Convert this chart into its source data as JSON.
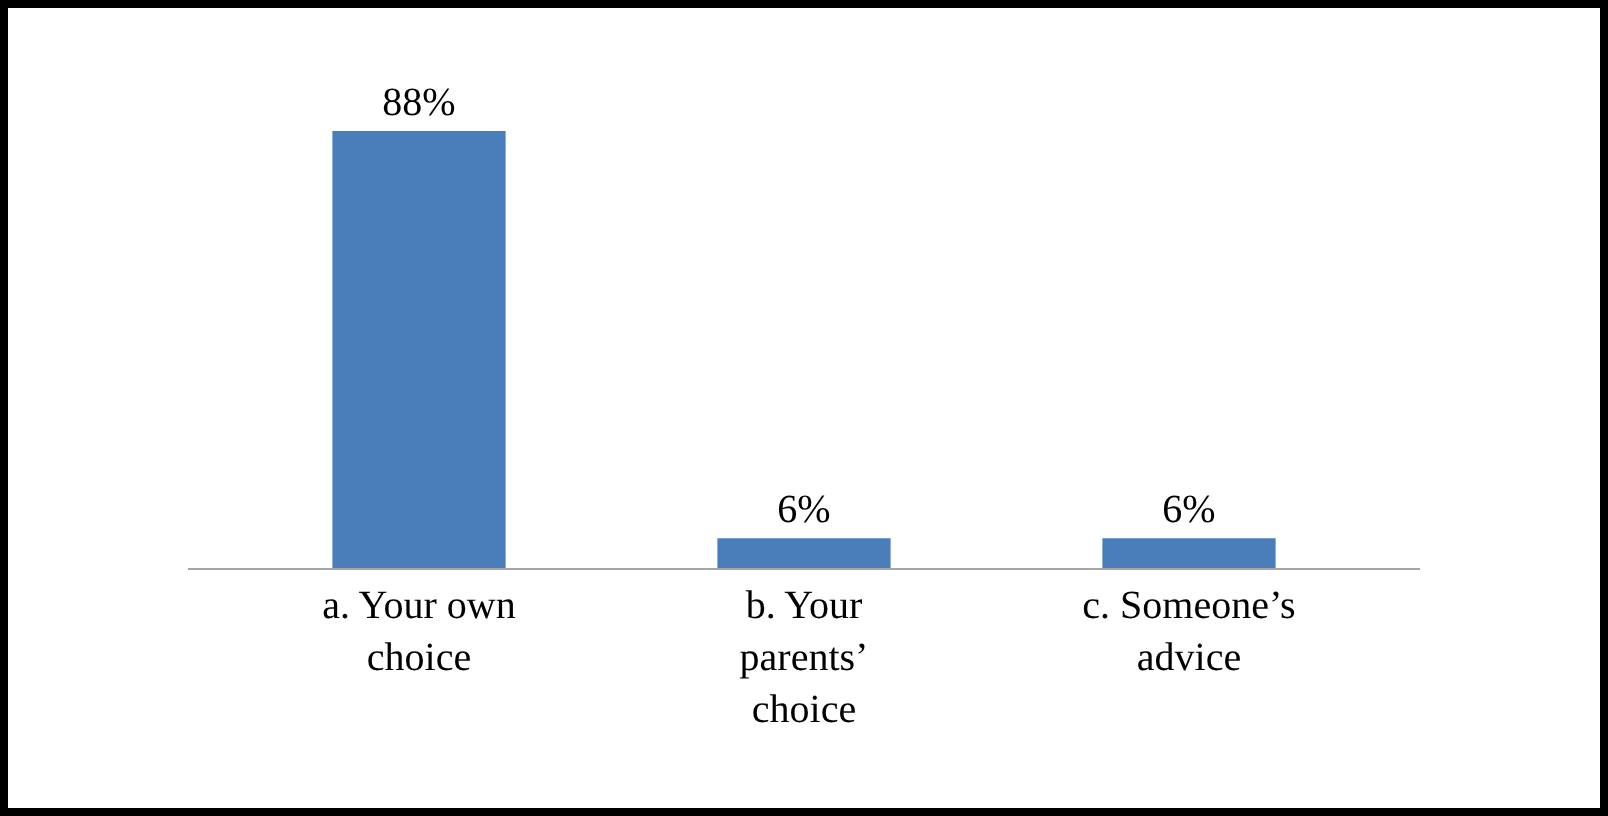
{
  "chart_data": {
    "type": "bar",
    "categories": [
      "a. Your own choice",
      "b. Your parents’ choice",
      "c. Someone’s advice"
    ],
    "values": [
      88,
      6,
      6
    ],
    "value_labels": [
      "88%",
      "6%",
      "6%"
    ],
    "color": "#4a7ebb"
  }
}
